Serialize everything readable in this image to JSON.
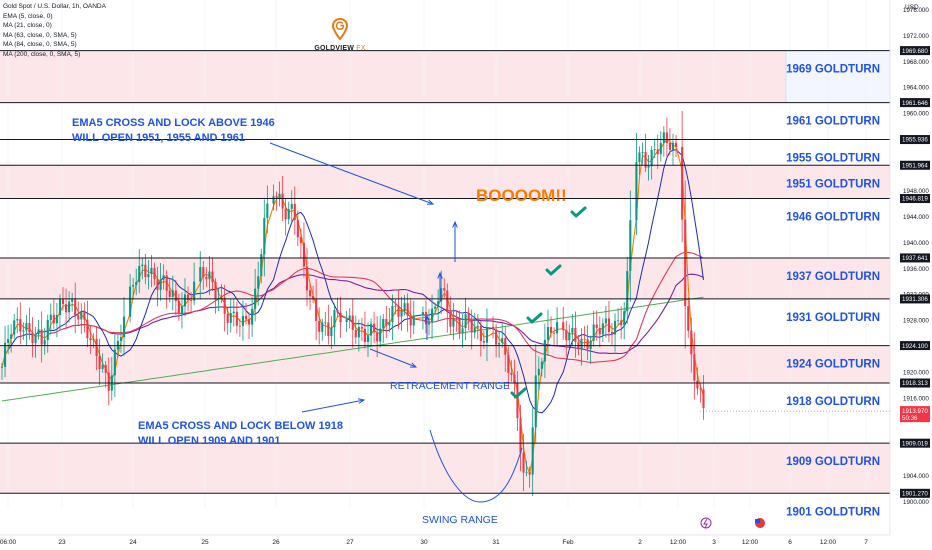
{
  "header": {
    "symbol": "Gold Spot / U.S. Dollar, 1h, OANDA",
    "indicators": [
      "EMA (5, close, 0)",
      "MA (21, close, 0)",
      "MA (63, close, 0, SMA, 5)",
      "MA (84, close, 0, SMA, 5)",
      "MA (200, close, 0, SMA, 5)"
    ]
  },
  "logo": {
    "name_bold": "GOLDVIEW",
    "name_light": " FX"
  },
  "colors": {
    "candle_up": "#089981",
    "candle_down": "#f23645",
    "goldturn_label": "#1e53e5",
    "annotation": "#1e53e5",
    "boom": "#f57c00",
    "zone_fill": "#fde6ea",
    "check": "#089981",
    "ema5": "#f57c00",
    "ma21": "#1e2bb8",
    "ma63": "#e03a5a",
    "ma84": "#7b1fa2",
    "ma200": "#4caf50"
  },
  "chart_data": {
    "type": "candlestick",
    "price_axis": {
      "currency": "USD",
      "ylim": [
        1899,
        1977.5
      ],
      "ticks": [
        1976,
        1972,
        1968,
        1964,
        1960,
        1956,
        1952,
        1948,
        1944,
        1940,
        1936,
        1932,
        1928,
        1920,
        1916,
        1904,
        1900
      ],
      "tick_labels": [
        "1976.000",
        "1972.000",
        "1968.000",
        "1964.000",
        "1960.000",
        "1956.000",
        "1952.000",
        "1948.000",
        "1944.000",
        "1940.000",
        "1936.000",
        "1932.000",
        "1928.000",
        "1920.000",
        "1916.000",
        "1904.000",
        "1900.000"
      ],
      "level_tags": [
        {
          "value": 1969.68,
          "label": "1969.680"
        },
        {
          "value": 1961.646,
          "label": "1961.646"
        },
        {
          "value": 1955.936,
          "label": "1955.936"
        },
        {
          "value": 1951.964,
          "label": "1951.964"
        },
        {
          "value": 1946.819,
          "label": "1946.819"
        },
        {
          "value": 1937.641,
          "label": "1937.641"
        },
        {
          "value": 1931.306,
          "label": "1931.306"
        },
        {
          "value": 1924.1,
          "label": "1924.100"
        },
        {
          "value": 1918.313,
          "label": "1918.313"
        },
        {
          "value": 1909.019,
          "label": "1909.019"
        },
        {
          "value": 1901.27,
          "label": "1901.270"
        }
      ],
      "current_price": {
        "value": 1913.97,
        "label": "1913.970",
        "countdown": "50:36"
      }
    },
    "time_axis": {
      "labels": [
        "06:00",
        "23",
        "24",
        "25",
        "26",
        "27",
        "30",
        "31",
        "Feb",
        "2",
        "12:00",
        "3",
        "12:00",
        "6",
        "12:00",
        "7"
      ]
    },
    "goldturns": [
      {
        "value": 1969,
        "line": 1969.68,
        "label": "1969 GOLDTURN"
      },
      {
        "value": 1961,
        "line": 1961.646,
        "label": "1961 GOLDTURN"
      },
      {
        "value": 1955,
        "line": 1955.936,
        "label": "1955 GOLDTURN"
      },
      {
        "value": 1951,
        "line": 1951.964,
        "label": "1951 GOLDTURN"
      },
      {
        "value": 1946,
        "line": 1946.819,
        "label": "1946 GOLDTURN"
      },
      {
        "value": 1937,
        "line": 1937.641,
        "label": "1937 GOLDTURN"
      },
      {
        "value": 1931,
        "line": 1931.306,
        "label": "1931 GOLDTURN"
      },
      {
        "value": 1924,
        "line": 1924.1,
        "label": "1924 GOLDTURN"
      },
      {
        "value": 1918,
        "line": 1918.313,
        "label": "1918 GOLDTURN"
      },
      {
        "value": 1909,
        "line": 1909.019,
        "label": "1909 GOLDTURN"
      },
      {
        "value": 1901,
        "line": 1901.27,
        "label": "1901 GOLDTURN"
      }
    ],
    "zones": [
      [
        1961.646,
        1969.68
      ],
      [
        1946.819,
        1951.964
      ],
      [
        1931.306,
        1937.641
      ],
      [
        1918.313,
        1924.1
      ],
      [
        1901.27,
        1909.019
      ]
    ],
    "annotations": {
      "ema_above": [
        "EMA5 CROSS AND LOCK ABOVE 1946",
        "WILL OPEN 1951, 1955 AND 1961"
      ],
      "ema_below": [
        "EMA5 CROSS AND LOCK BELOW 1918",
        "WILL OPEN 1909 AND 1901"
      ],
      "retracement": "RETRACEMENT RANGE",
      "swing": "SWING RANGE",
      "boom": "BOOOOM!!"
    }
  }
}
